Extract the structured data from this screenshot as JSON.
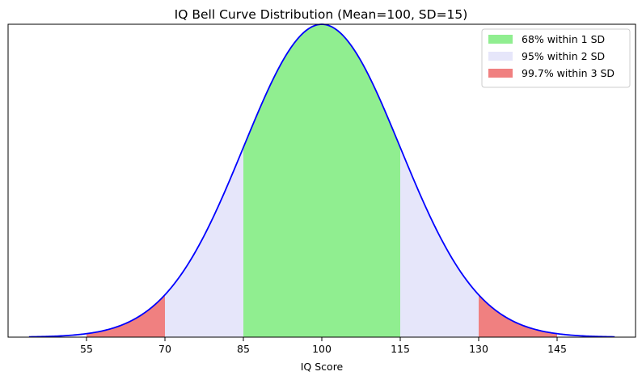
{
  "chart_data": {
    "type": "area",
    "title": "IQ Bell Curve Distribution (Mean=100, SD=15)",
    "xlabel": "IQ Score",
    "ylabel": "",
    "mean": 100,
    "sd": 15,
    "xlim": [
      40,
      160
    ],
    "ylim": [
      0,
      0.0266
    ],
    "xticks": [
      55,
      70,
      85,
      100,
      115,
      130,
      145
    ],
    "yticks": [],
    "grid": false,
    "curve_color": "#0000ff",
    "bands": [
      {
        "name": "99.7% within 3 SD",
        "range": [
          55,
          145
        ],
        "color": "#f08080"
      },
      {
        "name": "95% within 2 SD",
        "range": [
          70,
          130
        ],
        "color": "#e6e6fa"
      },
      {
        "name": "68% within 1 SD",
        "range": [
          85,
          115
        ],
        "color": "#90ee90"
      }
    ],
    "legend": {
      "position": "top-right",
      "entries": [
        "68% within 1 SD",
        "95% within 2 SD",
        "99.7% within 3 SD"
      ]
    }
  }
}
